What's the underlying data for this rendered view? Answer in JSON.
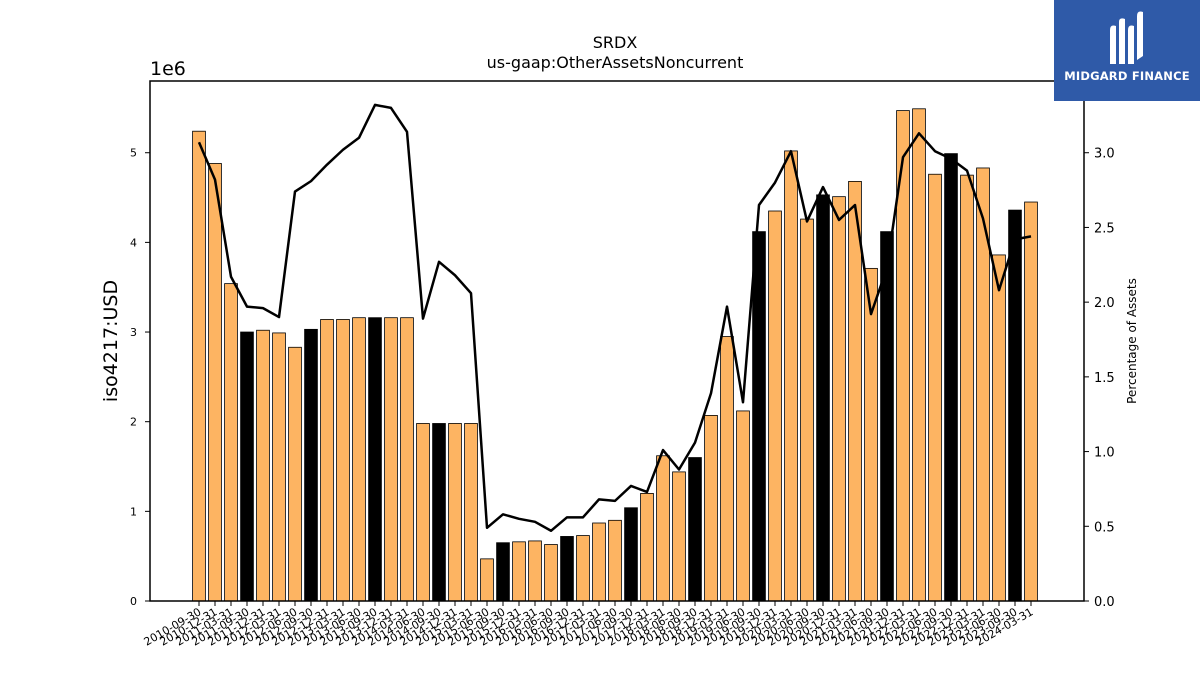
{
  "brand": {
    "name": "MIDGARD FINANCE",
    "bg": "#2f5aa8"
  },
  "chart_data": {
    "type": "bar",
    "title": "SRDX",
    "subtitle": "us-gaap:OtherAssetsNoncurrent",
    "ylabel": "iso4217:USD",
    "ylabel_right": "Percentage of Assets",
    "y_multiplier": "1e6",
    "ylim": [
      0,
      5.8
    ],
    "ylim_right": [
      0,
      3.48
    ],
    "yticks": [
      0,
      1,
      2,
      3,
      4,
      5
    ],
    "yticks_right": [
      "0.0",
      "0.5",
      "1.0",
      "1.5",
      "2.0",
      "2.5",
      "3.0"
    ],
    "colors": {
      "bar": "#fdb462",
      "bar_highlight": "#000000",
      "line": "#000000"
    },
    "categories": [
      "2010-09-30",
      "2010-12-31",
      "2011-03-31",
      "2011-09-30",
      "2011-12-31",
      "2012-03-31",
      "2012-06-30",
      "2012-09-30",
      "2012-12-31",
      "2013-03-31",
      "2013-06-30",
      "2013-09-30",
      "2013-12-31",
      "2014-03-31",
      "2014-06-30",
      "2014-09-30",
      "2014-12-31",
      "2015-03-31",
      "2015-06-30",
      "2015-09-30",
      "2015-12-31",
      "2016-03-31",
      "2016-06-30",
      "2016-09-30",
      "2016-12-31",
      "2017-03-31",
      "2017-06-30",
      "2017-09-30",
      "2017-12-31",
      "2018-03-31",
      "2018-06-30",
      "2018-09-30",
      "2018-12-31",
      "2019-03-31",
      "2019-06-30",
      "2019-09-30",
      "2019-12-31",
      "2020-03-31",
      "2020-06-30",
      "2020-09-30",
      "2020-12-31",
      "2021-03-31",
      "2021-06-30",
      "2021-09-30",
      "2021-12-31",
      "2022-03-31",
      "2022-06-30",
      "2022-09-30",
      "2022-12-31",
      "2023-03-31",
      "2023-06-30",
      "2023-09-30",
      "2024-03-31"
    ],
    "series": [
      {
        "type": "bar",
        "values": [
          5.24,
          4.88,
          3.54,
          3.0,
          3.02,
          2.99,
          2.83,
          3.03,
          3.14,
          3.14,
          3.16,
          3.16,
          3.16,
          3.16,
          1.98,
          1.98,
          1.98,
          1.98,
          0.47,
          0.65,
          0.66,
          0.67,
          0.63,
          0.72,
          0.73,
          0.87,
          0.9,
          1.04,
          1.2,
          1.62,
          1.44,
          1.6,
          2.07,
          2.95,
          2.12,
          4.12,
          4.35,
          5.02,
          4.26,
          4.53,
          4.51,
          4.68,
          3.71,
          4.12,
          5.47,
          5.49,
          4.76,
          4.99,
          4.75,
          4.83,
          3.86,
          4.36,
          4.45
        ],
        "highlight": [
          3,
          7,
          11,
          15,
          19,
          23,
          27,
          31,
          35,
          39,
          43,
          47,
          51
        ]
      },
      {
        "type": "line",
        "axis": "right",
        "values": [
          3.07,
          2.82,
          2.17,
          1.97,
          1.96,
          1.9,
          2.74,
          2.81,
          2.92,
          3.02,
          3.1,
          3.32,
          3.3,
          3.14,
          1.89,
          2.27,
          2.18,
          2.06,
          0.49,
          0.58,
          0.55,
          0.53,
          0.47,
          0.56,
          0.56,
          0.68,
          0.67,
          0.77,
          0.73,
          1.01,
          0.88,
          1.06,
          1.39,
          1.97,
          1.33,
          2.65,
          2.8,
          3.01,
          2.54,
          2.77,
          2.55,
          2.65,
          1.92,
          2.23,
          2.97,
          3.13,
          3.01,
          2.96,
          2.88,
          2.56,
          2.08,
          2.42,
          2.44
        ]
      }
    ]
  }
}
